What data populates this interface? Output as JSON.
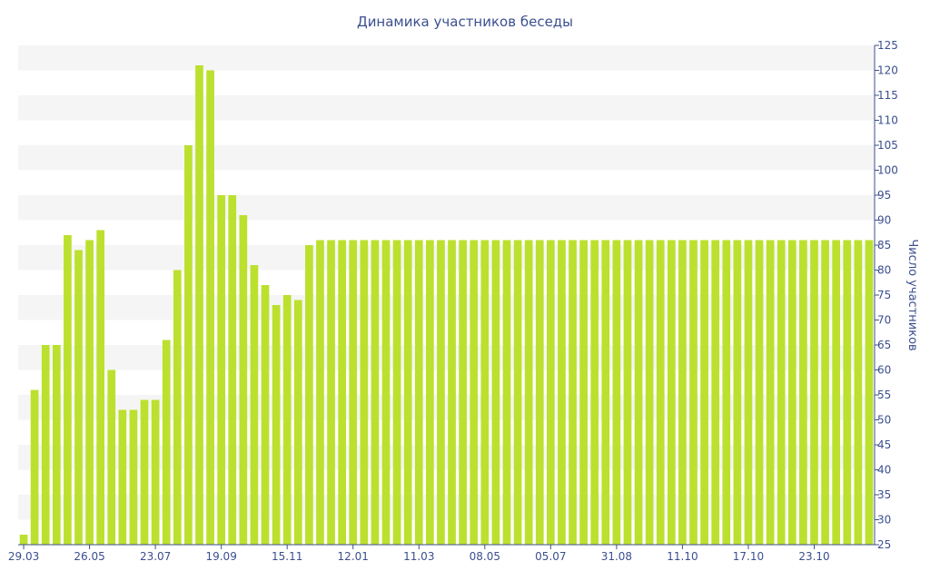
{
  "chart_data": {
    "type": "bar",
    "title": "Динамика участников беседы",
    "xlabel": "",
    "ylabel": "Число участников",
    "ylim": [
      25,
      125
    ],
    "y_ticks": [
      25,
      30,
      35,
      40,
      45,
      50,
      55,
      60,
      65,
      70,
      75,
      80,
      85,
      90,
      95,
      100,
      105,
      110,
      115,
      120,
      125
    ],
    "y_axis_side": "right",
    "x_tick_labels": [
      "29.03",
      "26.05",
      "23.07",
      "19.09",
      "15.11",
      "12.01",
      "11.03",
      "08.05",
      "05.07",
      "31.08",
      "11.10",
      "17.10",
      "23.10"
    ],
    "x_tick_indices": [
      0,
      6,
      12,
      18,
      24,
      30,
      36,
      42,
      48,
      54,
      60,
      66,
      72
    ],
    "grid": "horizontal bands",
    "bar_color": "#bce02e",
    "band_color": "#f5f5f5",
    "text_color": "#3b4f8f",
    "values": [
      27,
      56,
      65,
      65,
      87,
      84,
      86,
      88,
      60,
      52,
      52,
      54,
      54,
      66,
      80,
      105,
      121,
      120,
      95,
      95,
      91,
      81,
      77,
      73,
      75,
      74,
      85,
      86,
      86,
      86,
      86,
      86,
      86,
      86,
      86,
      86,
      86,
      86,
      86,
      86,
      86,
      86,
      86,
      86,
      86,
      86,
      86,
      86,
      86,
      86,
      86,
      86,
      86,
      86,
      86,
      86,
      86,
      86,
      86,
      86,
      86,
      86,
      86,
      86,
      86,
      86,
      86,
      86,
      86,
      86,
      86,
      86,
      86,
      86,
      86,
      86,
      86,
      86
    ]
  }
}
